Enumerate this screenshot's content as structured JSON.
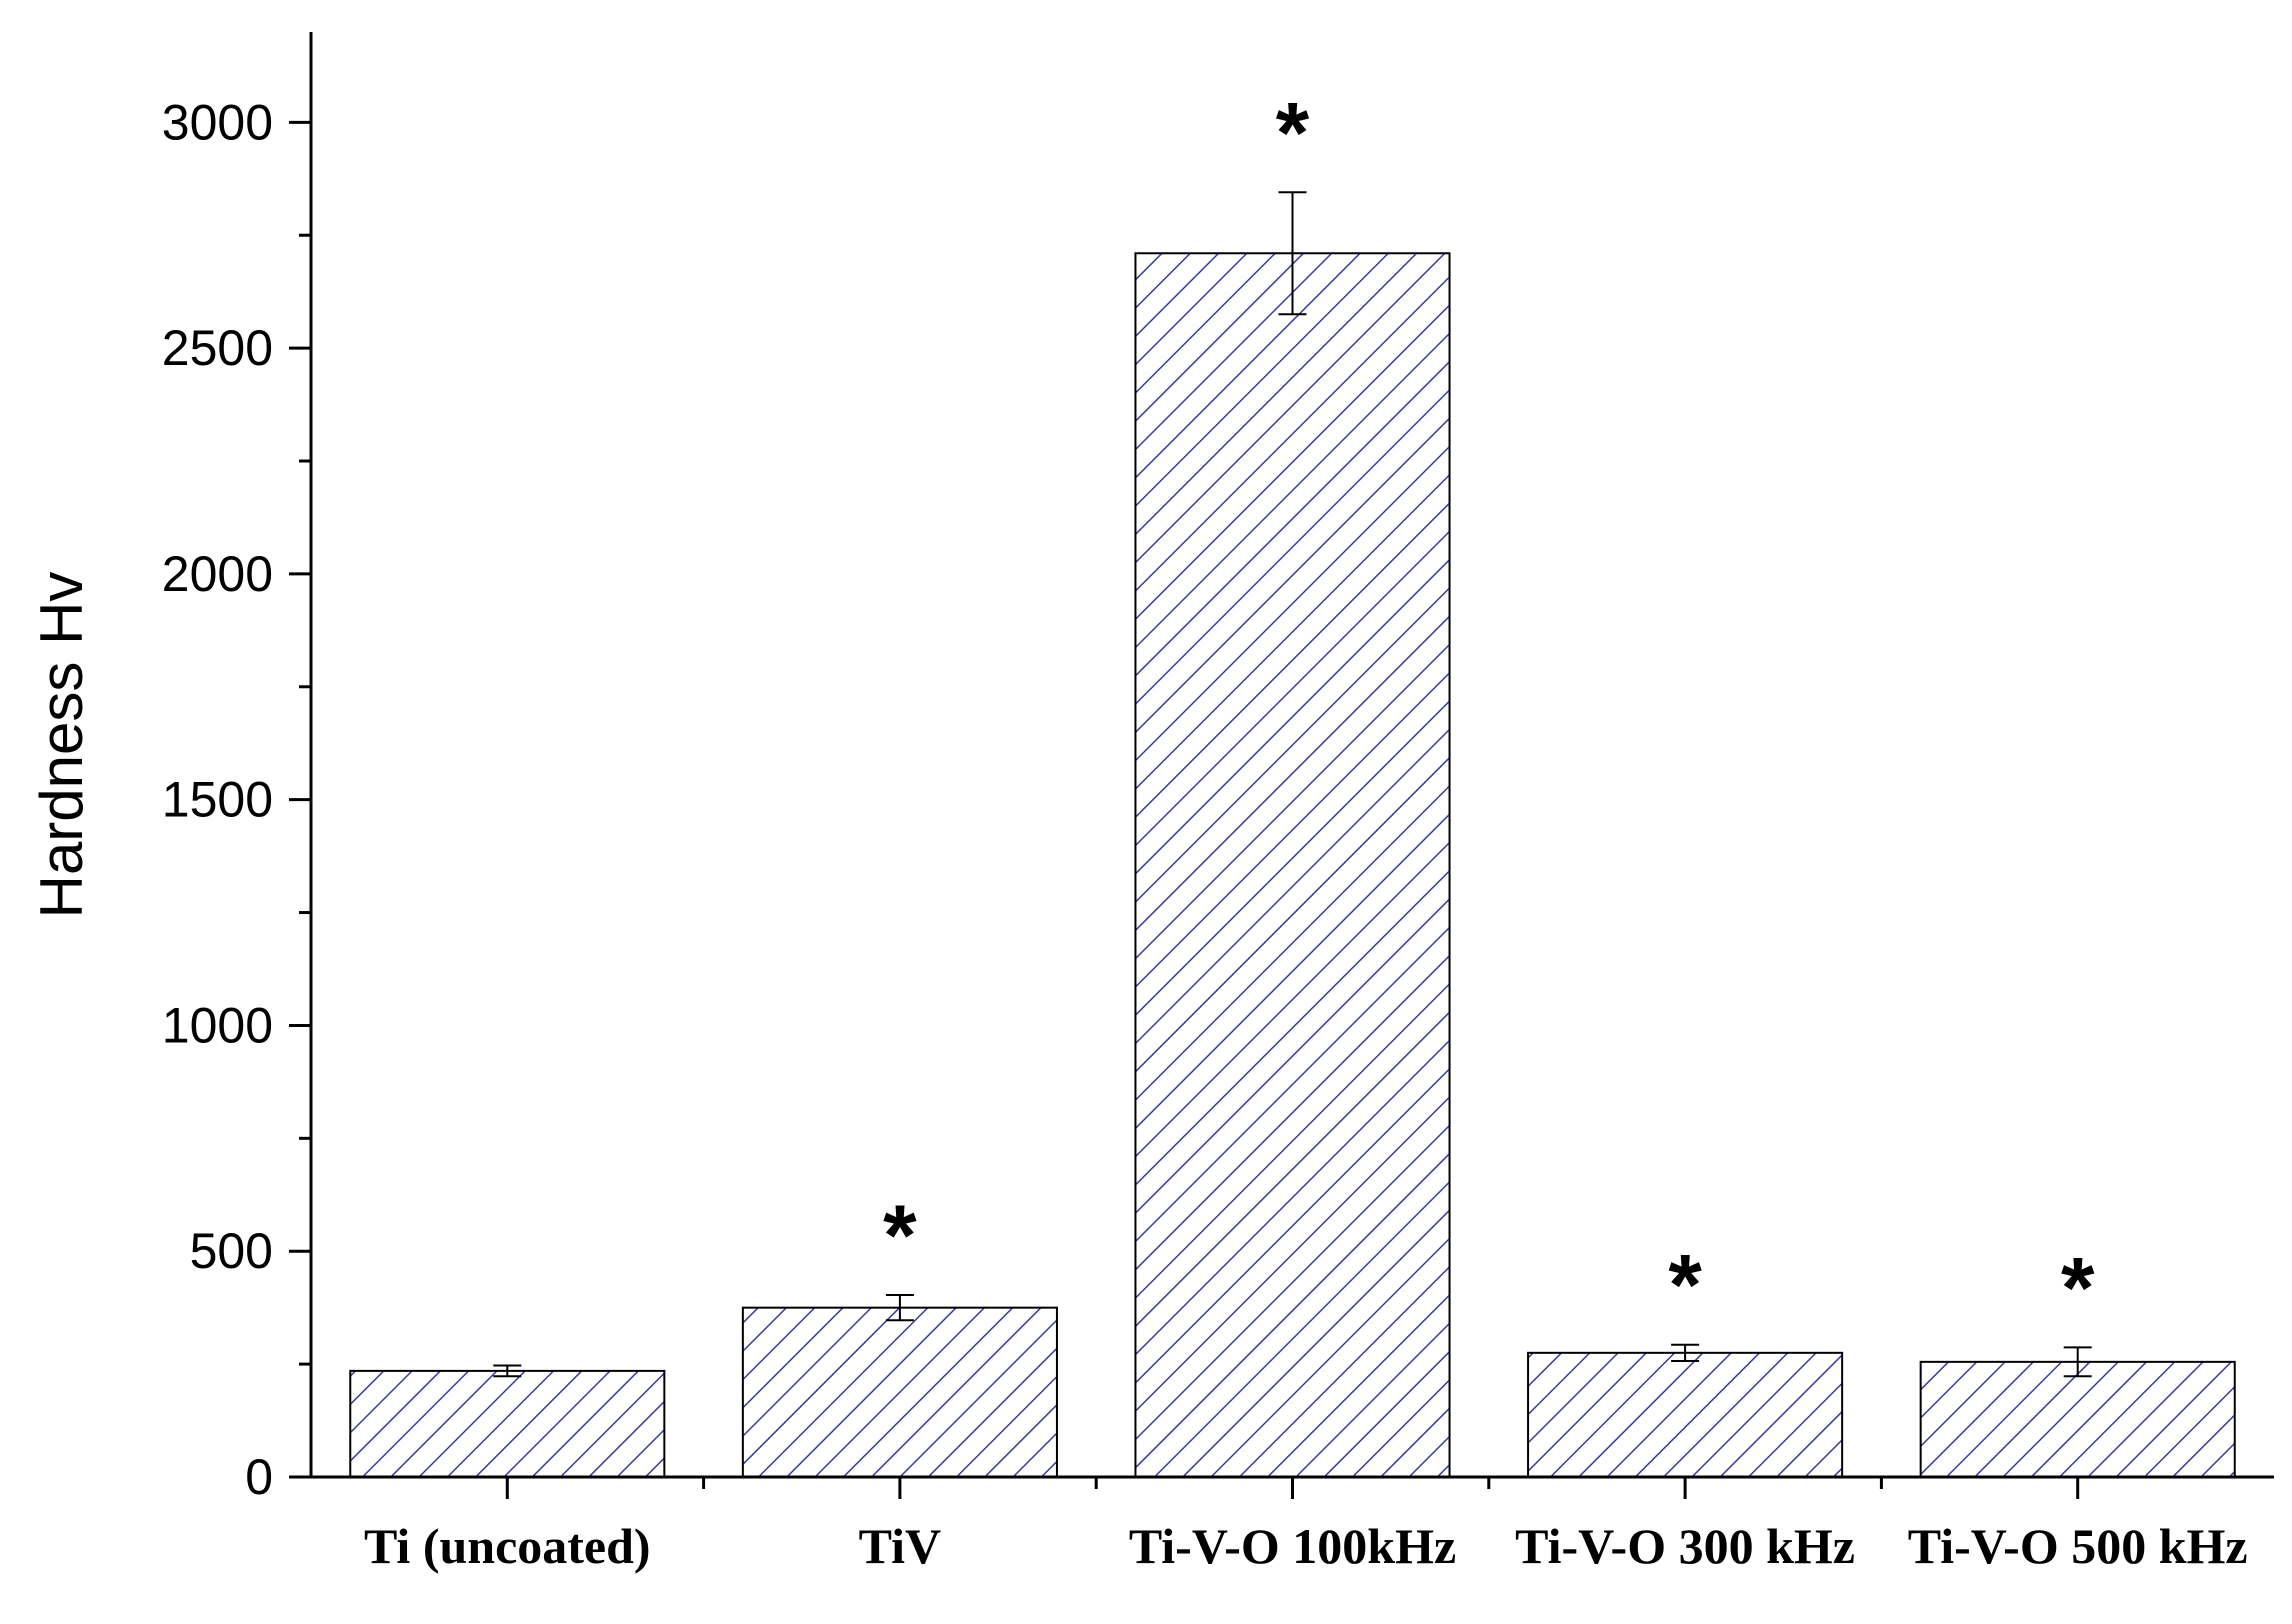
{
  "chart_data": {
    "type": "bar",
    "title": "",
    "xlabel": "",
    "ylabel": "Hardness Hv",
    "ylim": [
      0,
      3200
    ],
    "yticks": [
      0,
      500,
      1000,
      1500,
      2000,
      2500,
      3000
    ],
    "ytick_labels": [
      "0",
      "500",
      "1000",
      "1500",
      "2000",
      "2500",
      "3000"
    ],
    "categories": [
      "Ti (uncoated)",
      "TiV",
      "Ti-V-O 100kHz",
      "Ti-V-O 300 kHz",
      "Ti-V-O 500 kHz"
    ],
    "values": [
      235,
      375,
      2710,
      275,
      255
    ],
    "errors": [
      12,
      28,
      135,
      18,
      32
    ],
    "significance": [
      "",
      "*",
      "*",
      "*",
      "*"
    ],
    "grid": false,
    "legend": "none",
    "bar_style": "diagonal-hatch",
    "colors": {
      "hatch": "#3a3a9a",
      "bar_fill": "#ffffff",
      "edge": "#000000"
    }
  }
}
